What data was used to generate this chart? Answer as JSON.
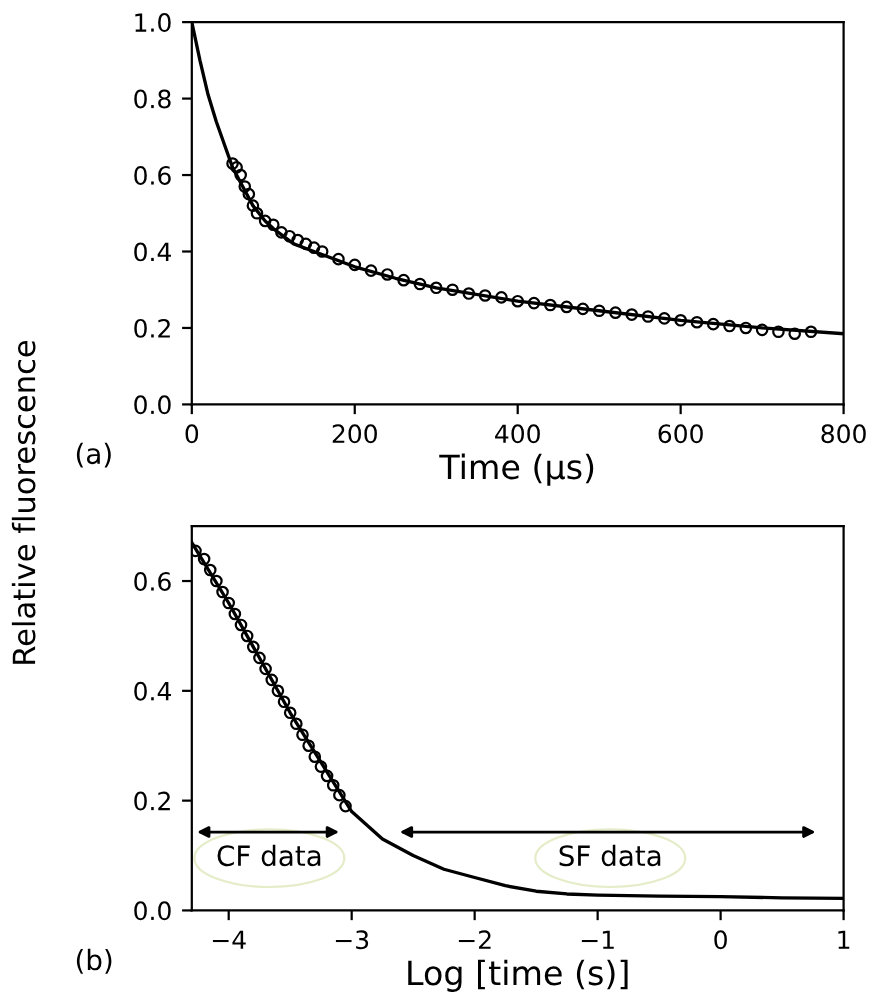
{
  "chart_data": [
    {
      "type": "scatter",
      "xlabel": "Time (µs)",
      "ylabel": "Relative fluorescence",
      "annotations": [
        "(a)"
      ],
      "xlim": [
        0,
        800
      ],
      "ylim": [
        0,
        1.0
      ],
      "xticks": [
        0,
        200,
        400,
        600,
        800
      ],
      "yticks": [
        {
          "value": 0,
          "label": "0.0"
        },
        {
          "value": 0.2,
          "label": "0.2"
        },
        {
          "value": 0.4,
          "label": "0.4"
        },
        {
          "value": 0.6,
          "label": "0.6"
        },
        {
          "value": 0.8,
          "label": "0.8"
        },
        {
          "value": 1.0,
          "label": "1.0"
        }
      ],
      "grid": false,
      "marker": "circle",
      "series": [
        {
          "color": "#000000",
          "x": [
            50,
            55,
            60,
            65,
            70,
            75,
            80,
            90,
            100,
            110,
            120,
            130,
            140,
            150,
            160,
            180,
            200,
            220,
            240,
            260,
            280,
            300,
            320,
            340,
            360,
            380,
            400,
            420,
            440,
            460,
            480,
            500,
            520,
            540,
            560,
            580,
            600,
            620,
            640,
            660,
            680,
            700,
            720,
            740,
            760
          ],
          "values": [
            0.63,
            0.62,
            0.6,
            0.57,
            0.55,
            0.52,
            0.5,
            0.48,
            0.47,
            0.45,
            0.44,
            0.43,
            0.42,
            0.41,
            0.4,
            0.38,
            0.365,
            0.35,
            0.34,
            0.325,
            0.315,
            0.305,
            0.3,
            0.29,
            0.285,
            0.28,
            0.27,
            0.265,
            0.26,
            0.255,
            0.25,
            0.245,
            0.24,
            0.235,
            0.23,
            0.225,
            0.22,
            0.215,
            0.21,
            0.205,
            0.2,
            0.195,
            0.19,
            0.185,
            0.19
          ]
        },
        {
          "type": "line",
          "marker": "none",
          "color": "#000000",
          "x": [
            0,
            10,
            20,
            30,
            40,
            50,
            60,
            75,
            90,
            100,
            125,
            150,
            200,
            250,
            300,
            400,
            500,
            600,
            700,
            800
          ],
          "values": [
            1.0,
            0.9,
            0.81,
            0.74,
            0.68,
            0.62,
            0.58,
            0.52,
            0.48,
            0.46,
            0.42,
            0.4,
            0.36,
            0.33,
            0.305,
            0.27,
            0.245,
            0.22,
            0.2,
            0.185
          ]
        }
      ]
    },
    {
      "type": "scatter",
      "xlabel": "Log [time (s)]",
      "annotations": [
        "(b)",
        "CF data",
        "SF data"
      ],
      "xlim": [
        -4.3,
        1
      ],
      "ylim": [
        0,
        0.7
      ],
      "xticks": [
        {
          "value": -4,
          "label": "−4"
        },
        {
          "value": -3,
          "label": "−3"
        },
        {
          "value": -2,
          "label": "−2"
        },
        {
          "value": -1,
          "label": "−1"
        },
        0,
        1
      ],
      "yticks": [
        {
          "value": 0,
          "label": "0.0"
        },
        {
          "value": 0.2,
          "label": "0.2"
        },
        {
          "value": 0.4,
          "label": "0.4"
        },
        {
          "value": 0.6,
          "label": "0.6"
        }
      ],
      "grid": false,
      "marker": "circle",
      "series": [
        {
          "color": "#000000",
          "x": [
            -4.27,
            -4.2,
            -4.15,
            -4.1,
            -4.05,
            -4.0,
            -3.95,
            -3.9,
            -3.85,
            -3.8,
            -3.75,
            -3.7,
            -3.65,
            -3.6,
            -3.55,
            -3.5,
            -3.45,
            -3.4,
            -3.35,
            -3.3,
            -3.25,
            -3.2,
            -3.15,
            -3.1,
            -3.05
          ],
          "values": [
            0.655,
            0.64,
            0.62,
            0.6,
            0.58,
            0.56,
            0.54,
            0.52,
            0.5,
            0.48,
            0.46,
            0.44,
            0.42,
            0.4,
            0.38,
            0.36,
            0.34,
            0.32,
            0.3,
            0.28,
            0.262,
            0.245,
            0.228,
            0.21,
            0.19
          ]
        },
        {
          "type": "line",
          "marker": "none",
          "color": "#000000",
          "x": [
            -4.3,
            -4.0,
            -3.5,
            -3.0,
            -2.75,
            -2.5,
            -2.25,
            -2.0,
            -1.75,
            -1.5,
            -1.25,
            -1.0,
            -0.5,
            0,
            0.5,
            1
          ],
          "values": [
            0.67,
            0.56,
            0.36,
            0.18,
            0.13,
            0.1,
            0.075,
            0.06,
            0.045,
            0.035,
            0.03,
            0.028,
            0.026,
            0.025,
            0.023,
            0.022
          ]
        }
      ]
    }
  ]
}
